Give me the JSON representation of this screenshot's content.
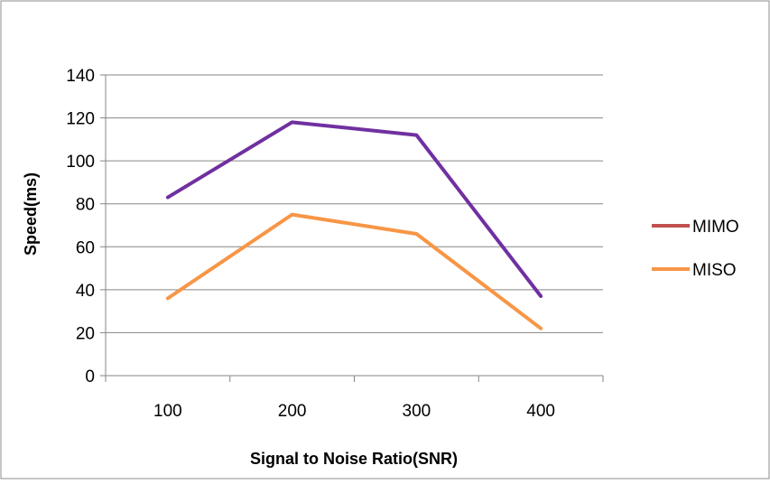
{
  "chart_data": {
    "type": "line",
    "title": "",
    "xlabel": "Signal to Noise Ratio(SNR)",
    "ylabel": "Speed(ms)",
    "categories": [
      "100",
      "200",
      "300",
      "400"
    ],
    "ylim": [
      0,
      140
    ],
    "yticks": [
      0,
      20,
      40,
      60,
      80,
      100,
      120,
      140
    ],
    "grid": true,
    "legend_position": "right",
    "series": [
      {
        "name": "MIMO",
        "values": [
          83,
          118,
          112,
          37
        ],
        "color": "#7030a0",
        "legend_color": "#c0504d"
      },
      {
        "name": "MISO",
        "values": [
          36,
          75,
          66,
          22
        ],
        "color": "#f79646",
        "legend_color": "#f79646"
      }
    ]
  }
}
